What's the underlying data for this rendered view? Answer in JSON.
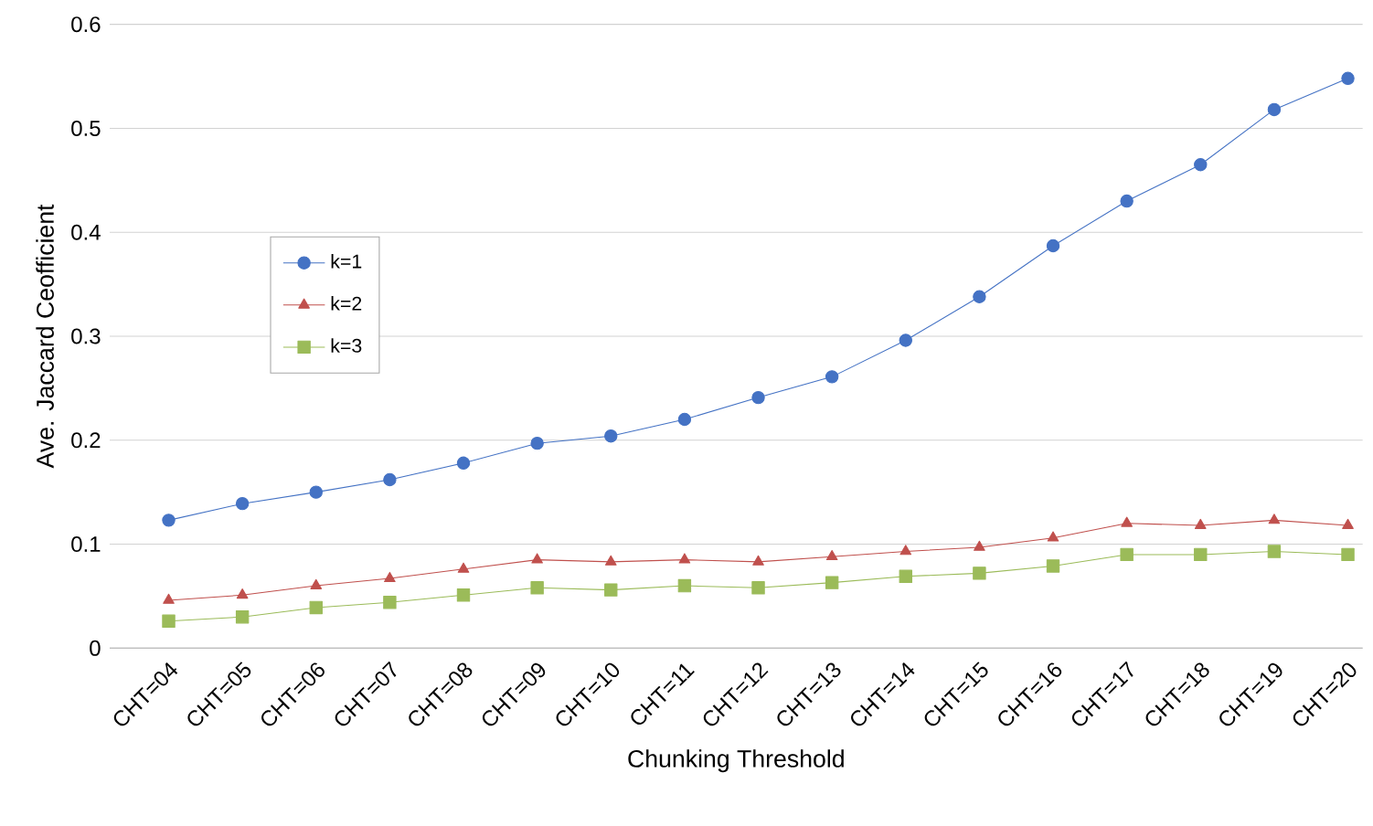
{
  "chart_data": {
    "type": "line",
    "xlabel": "Chunking Threshold",
    "ylabel": "Ave. Jaccard Ceofficient",
    "categories": [
      "CHT=04",
      "CHT=05",
      "CHT=06",
      "CHT=07",
      "CHT=08",
      "CHT=09",
      "CHT=10",
      "CHT=11",
      "CHT=12",
      "CHT=13",
      "CHT=14",
      "CHT=15",
      "CHT=16",
      "CHT=17",
      "CHT=18",
      "CHT=19",
      "CHT=20"
    ],
    "series": [
      {
        "name": "k=1",
        "color": "#4472c4",
        "marker": "circle",
        "values": [
          0.123,
          0.139,
          0.15,
          0.162,
          0.178,
          0.197,
          0.204,
          0.22,
          0.241,
          0.261,
          0.296,
          0.338,
          0.387,
          0.43,
          0.465,
          0.518,
          0.548
        ]
      },
      {
        "name": "k=2",
        "color": "#c0504d",
        "marker": "triangle",
        "values": [
          0.046,
          0.051,
          0.06,
          0.067,
          0.076,
          0.085,
          0.083,
          0.085,
          0.083,
          0.088,
          0.093,
          0.097,
          0.106,
          0.12,
          0.118,
          0.123,
          0.118
        ]
      },
      {
        "name": "k=3",
        "color": "#9bbb59",
        "marker": "square",
        "values": [
          0.026,
          0.03,
          0.039,
          0.044,
          0.051,
          0.058,
          0.056,
          0.06,
          0.058,
          0.063,
          0.069,
          0.072,
          0.079,
          0.09,
          0.09,
          0.093,
          0.09
        ]
      }
    ],
    "ylim": [
      0,
      0.6
    ],
    "yticks": [
      0,
      0.1,
      0.2,
      0.3,
      0.4,
      0.5,
      0.6
    ],
    "grid": "y",
    "legend": "top left",
    "line_style": "solid"
  }
}
